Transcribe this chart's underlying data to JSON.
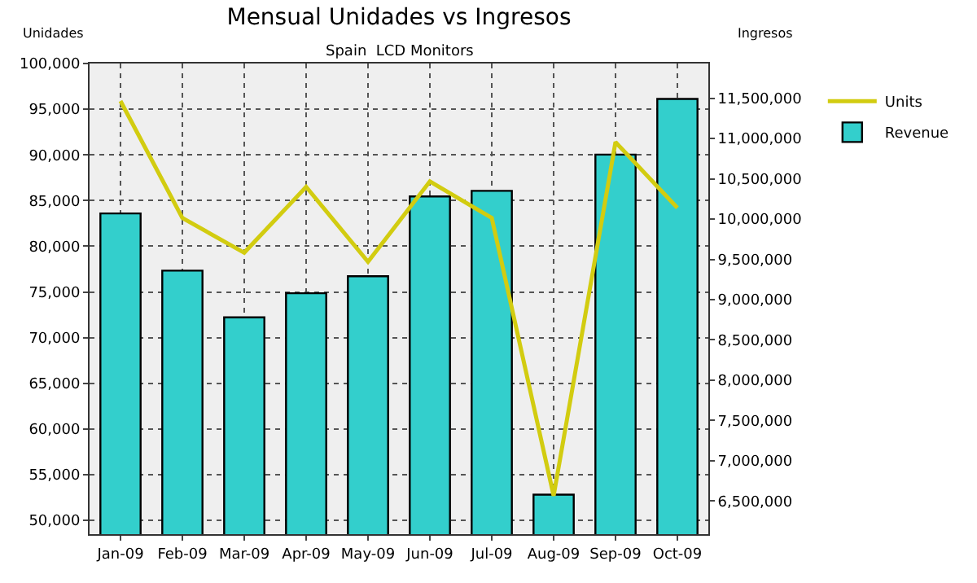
{
  "chart_data": {
    "type": "bar",
    "title": "Mensual Unidades vs Ingresos",
    "subtitle": "Spain  LCD Monitors",
    "ylabel": "Unidades",
    "y2label": "Ingresos",
    "categories": [
      "Jan-09",
      "Feb-09",
      "Mar-09",
      "Apr-09",
      "May-09",
      "Jun-09",
      "Jul-09",
      "Aug-09",
      "Sep-09",
      "Oct-09"
    ],
    "series": [
      {
        "name": "Revenue",
        "axis": "y2",
        "color": "#33cfcc",
        "values": [
          10070000,
          9360000,
          8780000,
          9080000,
          9290000,
          10280000,
          10350000,
          6580000,
          10800000,
          11490000
        ]
      },
      {
        "name": "Units",
        "type": "line",
        "axis": "y",
        "color": "#d2cc10",
        "values": [
          95900,
          83100,
          79300,
          86500,
          78300,
          87100,
          83100,
          52700,
          91400,
          84200
        ]
      }
    ],
    "ylim": [
      48500,
      100000
    ],
    "yticks": [
      {
        "value": 50000,
        "label": "50,000"
      },
      {
        "value": 55000,
        "label": "55,000"
      },
      {
        "value": 60000,
        "label": "60,000"
      },
      {
        "value": 65000,
        "label": "65,000"
      },
      {
        "value": 70000,
        "label": "70,000"
      },
      {
        "value": 75000,
        "label": "75,000"
      },
      {
        "value": 80000,
        "label": "80,000"
      },
      {
        "value": 85000,
        "label": "85,000"
      },
      {
        "value": 90000,
        "label": "90,000"
      },
      {
        "value": 95000,
        "label": "95,000"
      },
      {
        "value": 100000,
        "label": "100,000"
      }
    ],
    "y2lim": [
      6090000,
      11930000
    ],
    "y2ticks": [
      {
        "value": 6500000,
        "label": "6,500,000"
      },
      {
        "value": 7000000,
        "label": "7,000,000"
      },
      {
        "value": 7500000,
        "label": "7,500,000"
      },
      {
        "value": 8000000,
        "label": "8,000,000"
      },
      {
        "value": 8500000,
        "label": "8,500,000"
      },
      {
        "value": 9000000,
        "label": "9,000,000"
      },
      {
        "value": 9500000,
        "label": "9,500,000"
      },
      {
        "value": 10000000,
        "label": "10,000,000"
      },
      {
        "value": 10500000,
        "label": "10,500,000"
      },
      {
        "value": 11000000,
        "label": "11,000,000"
      },
      {
        "value": 11500000,
        "label": "11,500,000"
      }
    ],
    "grid": true,
    "legend": "top right",
    "marker": "none",
    "line_style": "solid"
  }
}
